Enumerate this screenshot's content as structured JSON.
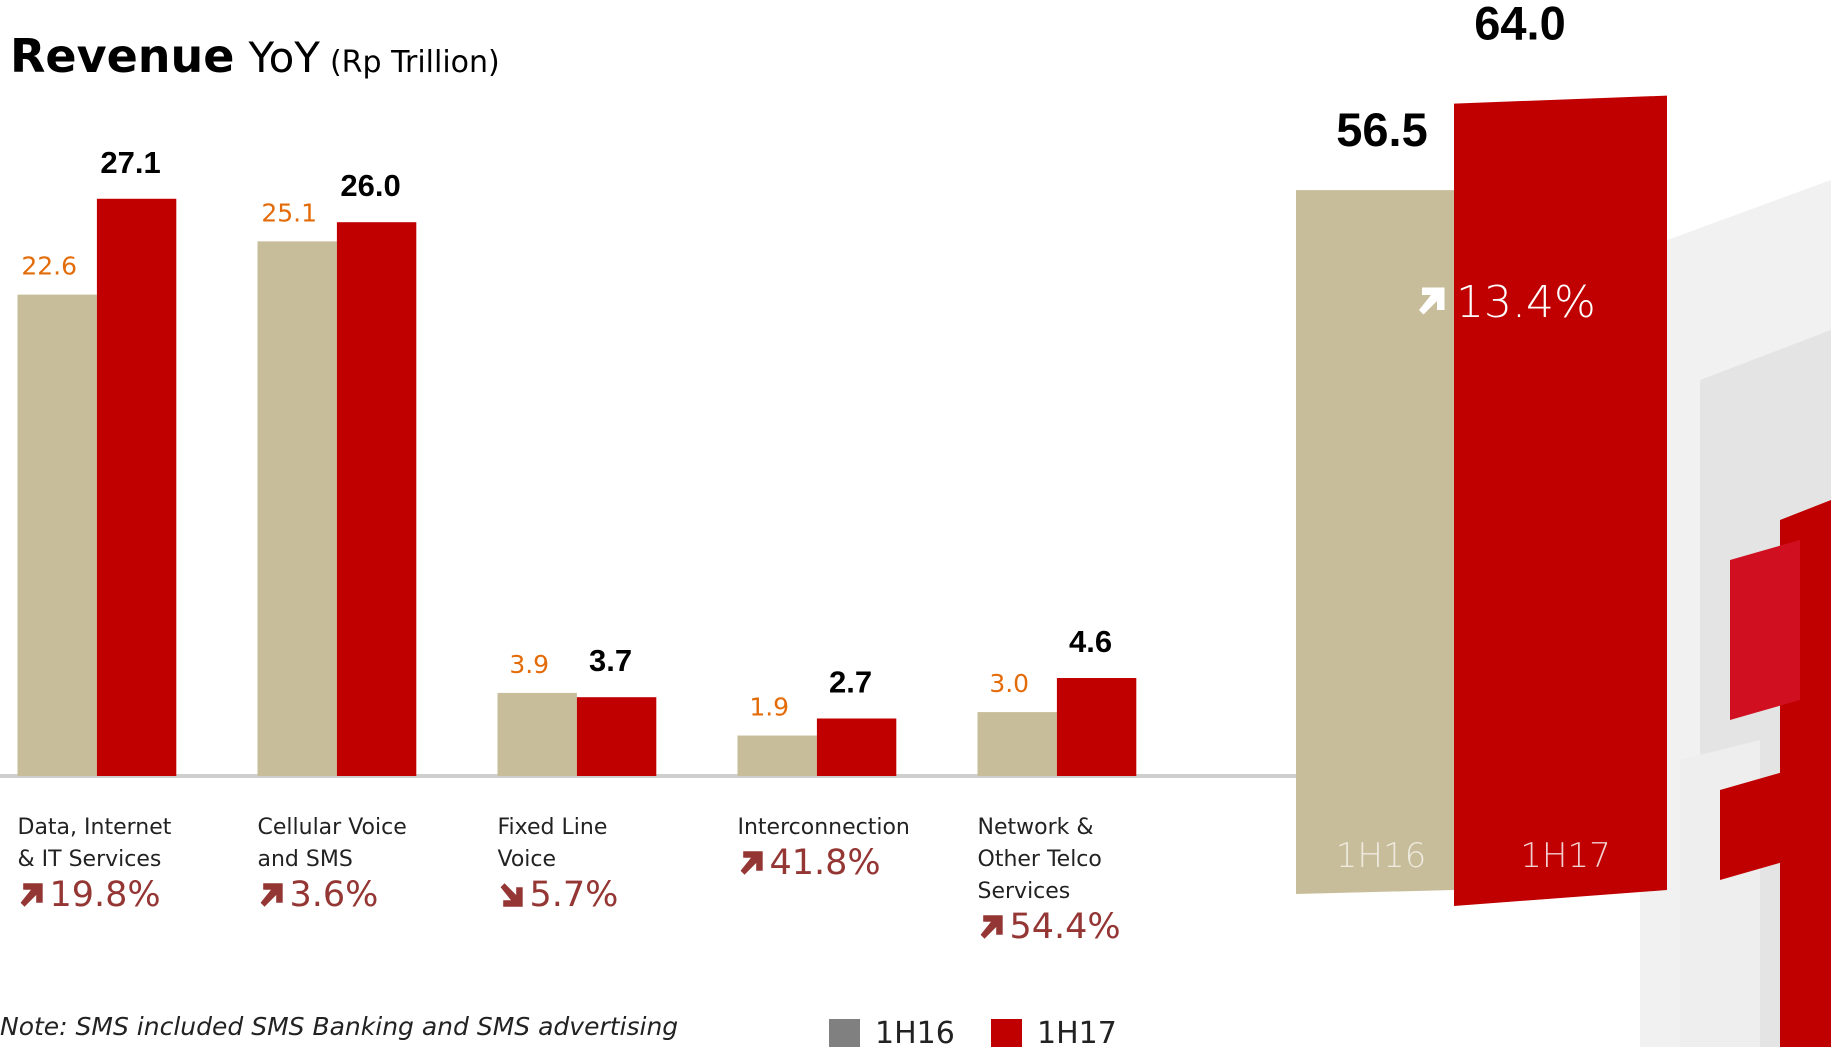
{
  "chart_data": {
    "type": "bar",
    "title": "Revenue",
    "title_suffix": "YoY",
    "unit": "(Rp Trillion)",
    "categories": [
      "Data, Internet\n&  IT Services",
      "Cellular Voice\nand SMS",
      "Fixed Line\nVoice",
      "Interconnection",
      "Network &\nOther Telco\nServices"
    ],
    "series": [
      {
        "name": "1H16",
        "color": "#c8bd9a",
        "values": [
          22.6,
          25.1,
          3.9,
          1.9,
          3.0
        ],
        "value_labels": [
          "22.6",
          "25.1",
          "3.9",
          "1.9",
          "3.0"
        ]
      },
      {
        "name": "1H17",
        "color": "#c00000",
        "values": [
          27.1,
          26.0,
          3.7,
          2.7,
          4.6
        ],
        "value_labels": [
          "27.1",
          "26.0",
          "3.7",
          "2.7",
          "4.6"
        ]
      }
    ],
    "changes": [
      {
        "direction": "up",
        "label": "19.8%"
      },
      {
        "direction": "up",
        "label": "3.6%"
      },
      {
        "direction": "down",
        "label": "5.7%"
      },
      {
        "direction": "up",
        "label": "41.8%"
      },
      {
        "direction": "up",
        "label": "54.4%"
      }
    ],
    "total": {
      "values": [
        56.5,
        64.0
      ],
      "value_labels": [
        "56.5",
        "64.0"
      ],
      "change": {
        "direction": "up",
        "label": "13.4%"
      }
    },
    "legend_colors": [
      "#808080",
      "#c00000"
    ],
    "note": "Note: SMS included SMS Banking and SMS advertising"
  }
}
